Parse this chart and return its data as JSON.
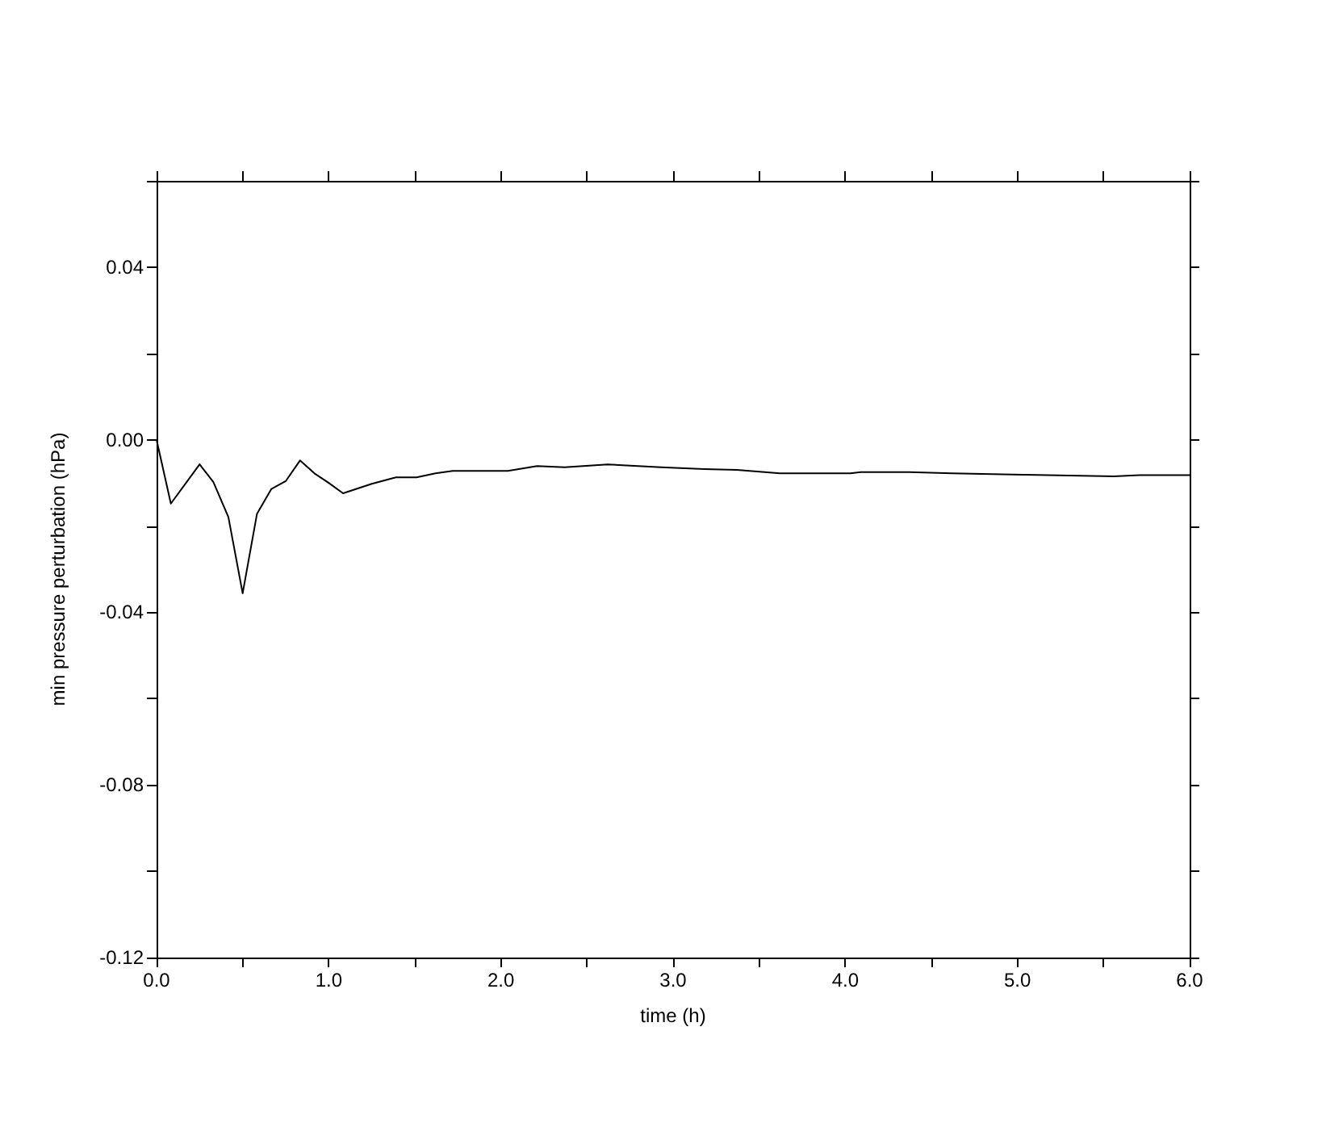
{
  "chart_data": {
    "type": "line",
    "xlabel": "time (h)",
    "ylabel": "min pressure perturbation (hPa)",
    "x": [
      0,
      0.083,
      0.25,
      0.33,
      0.417,
      0.5,
      0.583,
      0.667,
      0.75,
      0.833,
      0.917,
      1.0,
      1.083,
      1.25,
      1.39,
      1.51,
      1.62,
      1.72,
      2.04,
      2.21,
      2.37,
      2.62,
      2.93,
      3.18,
      3.37,
      3.62,
      4.03,
      4.09,
      4.37,
      4.62,
      5.03,
      5.56,
      5.71,
      6.0
    ],
    "series": [
      {
        "color": "#000000",
        "values": [
          0,
          -0.0148,
          -0.0057,
          -0.0098,
          -0.0179,
          -0.0356,
          -0.0172,
          -0.0114,
          -0.0096,
          -0.0048,
          -0.0078,
          -0.01,
          -0.0124,
          -0.0102,
          -0.0087,
          -0.0087,
          -0.0078,
          -0.0072,
          -0.0072,
          -0.0061,
          -0.0064,
          -0.0057,
          -0.0064,
          -0.0068,
          -0.007,
          -0.0078,
          -0.0078,
          -0.0075,
          -0.0075,
          -0.0078,
          -0.0081,
          -0.0085,
          -0.0082,
          -0.0082
        ]
      }
    ],
    "xlim": [
      0,
      6
    ],
    "ylim": [
      -0.12,
      0.06
    ],
    "xticks": [
      {
        "value": 0,
        "label": "0.0"
      },
      {
        "value": 0.5,
        "label": null
      },
      {
        "value": 1,
        "label": "1.0"
      },
      {
        "value": 1.5,
        "label": null
      },
      {
        "value": 2,
        "label": "2.0"
      },
      {
        "value": 2.5,
        "label": null
      },
      {
        "value": 3,
        "label": "3.0"
      },
      {
        "value": 3.5,
        "label": null
      },
      {
        "value": 4,
        "label": "4.0"
      },
      {
        "value": 4.5,
        "label": null
      },
      {
        "value": 5,
        "label": "5.0"
      },
      {
        "value": 5.5,
        "label": null
      },
      {
        "value": 6,
        "label": "6.0"
      }
    ],
    "yticks": [
      -0.12,
      {
        "value": -0.1,
        "label": null
      },
      -0.08,
      {
        "value": -0.06,
        "label": null
      },
      -0.04,
      {
        "value": -0.02,
        "label": null
      },
      {
        "value": 0,
        "label": "0.00"
      },
      {
        "value": 0.02,
        "label": null
      },
      0.04,
      {
        "value": 0.06,
        "label": null
      }
    ],
    "marker": "none",
    "line_style": "solid"
  }
}
